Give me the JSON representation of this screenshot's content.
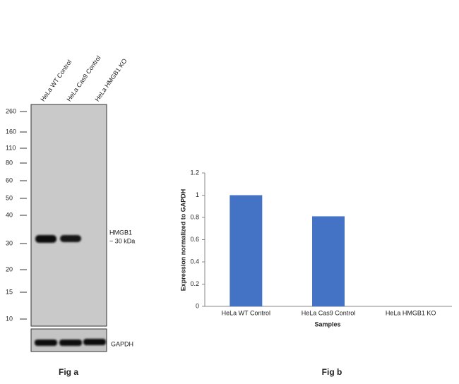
{
  "blot": {
    "lanes": [
      "HeLa WT Control",
      "HeLa Cas9 Control",
      "HeLa HMGB1 KO"
    ],
    "markers": [
      260,
      160,
      110,
      80,
      60,
      50,
      40,
      30,
      20,
      15,
      10
    ],
    "band_label": "HMGB1",
    "band_size": "~ 30 kDa",
    "loading_control": "GAPDH",
    "caption": "Fig a"
  },
  "chart_data": {
    "type": "bar",
    "categories": [
      "HeLa WT Control",
      "HeLa Cas9 Control",
      "HeLa HMGB1 KO"
    ],
    "values": [
      1,
      0.81,
      0
    ],
    "color": "#4472c4",
    "ylim": [
      0,
      1.2
    ],
    "yticks": [
      0,
      0.2,
      0.4,
      0.6,
      0.8,
      1,
      1.2
    ],
    "ylabel": "Expression  normalized to GAPDH",
    "xlabel": "Samples",
    "caption": "Fig b"
  }
}
